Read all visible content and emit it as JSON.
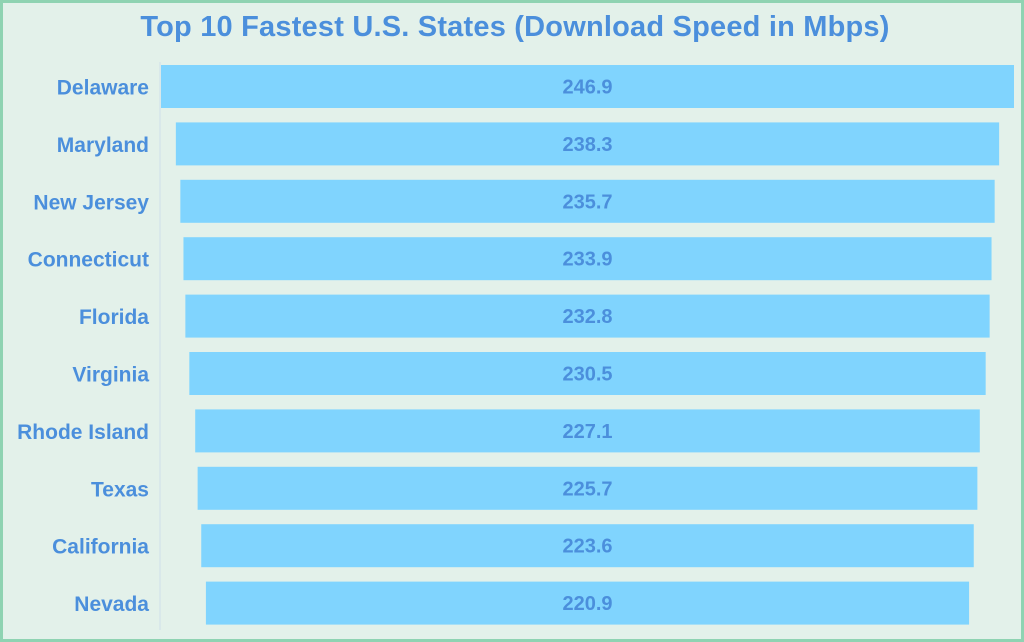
{
  "chart_data": {
    "type": "bar",
    "orientation": "horizontal",
    "title": "Top 10 Fastest U.S. States (Download Speed in Mbps)",
    "categories": [
      "Delaware",
      "Maryland",
      "New Jersey",
      "Connecticut",
      "Florida",
      "Virginia",
      "Rhode Island",
      "Texas",
      "California",
      "Nevada"
    ],
    "values": [
      246.9,
      238.3,
      235.7,
      233.9,
      232.8,
      230.5,
      227.1,
      225.7,
      223.6,
      220.9
    ],
    "value_labels": [
      "246.9",
      "238.3",
      "235.7",
      "233.9",
      "232.8",
      "230.5",
      "227.1",
      "225.7",
      "223.6",
      "220.9"
    ],
    "bar_alignment": "centered",
    "grid": false,
    "legend": "none",
    "colors": {
      "bar": "#80d4fe",
      "text": "#4b8fdc",
      "background": "#e3f1ea",
      "border": "#8fd3b2",
      "axis": "#cfe0ea"
    }
  }
}
